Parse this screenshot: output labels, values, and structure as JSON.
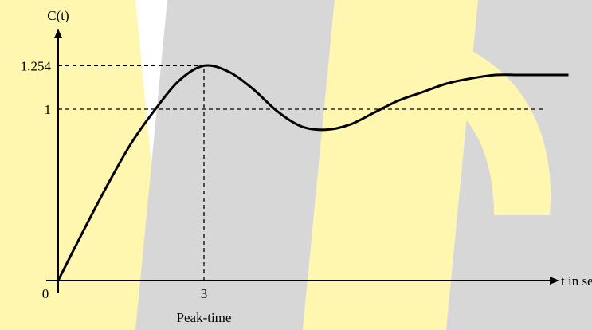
{
  "chart_data": {
    "type": "line",
    "ylabel": "C(t)",
    "xlabel": "t in seconds",
    "origin_label": "0",
    "annotation": "Peak-time",
    "x_ticks": [
      {
        "value": 3,
        "label": "3"
      }
    ],
    "y_ticks": [
      {
        "value": 1,
        "label": "1"
      },
      {
        "value": 1.254,
        "label": "1.254"
      }
    ],
    "xlim": [
      0,
      11.2
    ],
    "ylim": [
      0,
      1.5
    ],
    "series": [
      {
        "x": [
          0,
          0.5,
          1,
          1.5,
          2,
          2.5,
          3,
          3.5,
          4,
          4.5,
          5,
          5.5,
          6,
          6.5,
          7,
          7.5,
          8,
          8.5,
          9,
          9.5,
          10,
          10.5
        ],
        "y": [
          0,
          0.28,
          0.55,
          0.8,
          1.0,
          1.17,
          1.254,
          1.22,
          1.12,
          0.99,
          0.9,
          0.88,
          0.91,
          0.98,
          1.05,
          1.1,
          1.15,
          1.18,
          1.2,
          1.2,
          1.2,
          1.2
        ]
      }
    ],
    "reference_lines": [
      {
        "type": "horizontal",
        "y": 1.254,
        "x_from": 0,
        "x_to": 3,
        "style": "dashed"
      },
      {
        "type": "horizontal",
        "y": 1,
        "x_from": 0,
        "x_to": 10,
        "style": "dashed"
      },
      {
        "type": "vertical",
        "x": 3,
        "y_from": 0,
        "y_to": 1.254,
        "style": "dashed"
      }
    ],
    "colors": {
      "curve": "#000000",
      "axes": "#000000",
      "watermark_grey": "#d7d7d7",
      "watermark_yellow": "#fff6b0"
    }
  }
}
